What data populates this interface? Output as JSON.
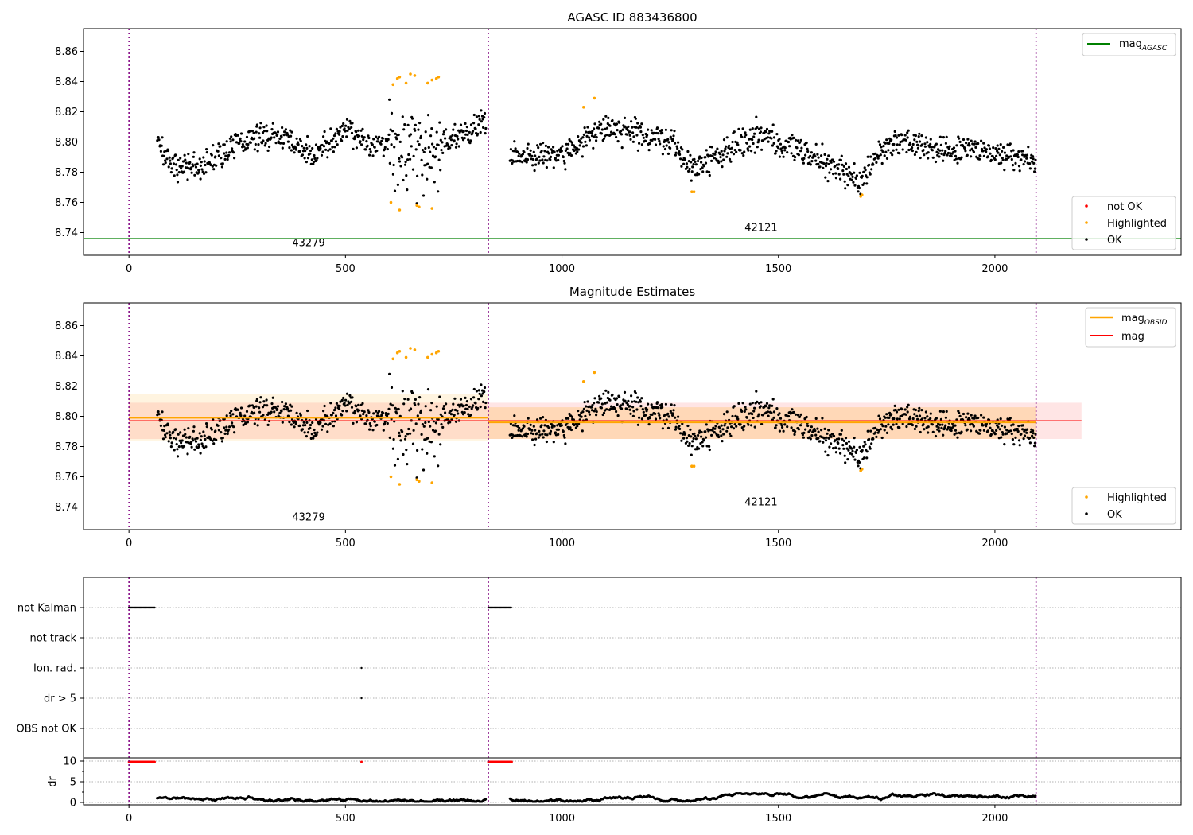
{
  "chart_data": [
    {
      "type": "scatter",
      "title": "AGASC ID 883436800",
      "xlim": [
        -105,
        2430
      ],
      "ylim": [
        8.725,
        8.875
      ],
      "xticks": [
        0,
        500,
        1000,
        1500,
        2000
      ],
      "yticks": [
        "8.74",
        "8.76",
        "8.78",
        "8.80",
        "8.82",
        "8.84",
        "8.86"
      ],
      "obs_boundaries": [
        0,
        830,
        2095
      ],
      "obs_labels": [
        {
          "text": "43279",
          "x": 415,
          "y": 8.731
        },
        {
          "text": "42121",
          "x": 1460,
          "y": 8.741
        }
      ],
      "lines": [
        {
          "name": "mag_AGASC",
          "label": "mag",
          "sub": "AGASC",
          "y": 8.736,
          "x": [
            -105,
            2430
          ],
          "color": "#008000"
        }
      ],
      "legend_top": "top-right",
      "legend_bottom": "bottom-right",
      "legend_series": [
        "not OK",
        "Highlighted",
        "OK"
      ],
      "series_ref": "ok_trend"
    },
    {
      "type": "scatter",
      "title": "Magnitude Estimates",
      "xlim": [
        -105,
        2430
      ],
      "ylim": [
        8.725,
        8.875
      ],
      "xticks": [
        0,
        500,
        1000,
        1500,
        2000
      ],
      "yticks": [
        "8.74",
        "8.76",
        "8.78",
        "8.80",
        "8.82",
        "8.84",
        "8.86"
      ],
      "obs_labels": [
        {
          "text": "43279",
          "x": 415,
          "y": 8.731
        },
        {
          "text": "42121",
          "x": 1460,
          "y": 8.741
        }
      ],
      "mag": {
        "label": "mag",
        "y": 8.797,
        "band": [
          8.785,
          8.809
        ],
        "x": [
          0,
          2200
        ],
        "color": "#ff0000"
      },
      "mag_obsid": {
        "label": "mag",
        "sub": "OBSID",
        "color": "#ffa500",
        "segments": [
          {
            "x": [
              0,
              830
            ],
            "y": 8.799,
            "band": [
              8.784,
              8.815
            ]
          },
          {
            "x": [
              830,
              2095
            ],
            "y": 8.796,
            "band": [
              8.785,
              8.806
            ]
          }
        ]
      },
      "legend_series": [
        "Highlighted",
        "OK"
      ]
    },
    {
      "type": "scatter",
      "flags": [
        "not Kalman",
        "not track",
        "Ion. rad.",
        "dr > 5",
        "OBS not OK"
      ],
      "flag_points": {
        "not Kalman": [
          [
            0,
            60
          ],
          [
            830,
            885
          ]
        ],
        "not track": [],
        "Ion. rad.": [
          [
            537,
            537
          ]
        ],
        "dr > 5": [
          [
            537,
            537
          ]
        ],
        "OBS not OK": []
      },
      "dr_ylabel": "dr",
      "dr_yticks": [
        "0",
        "5",
        "10"
      ],
      "dr_clipped_red": [
        [
          0,
          60
        ],
        [
          537,
          537
        ],
        [
          830,
          885
        ]
      ],
      "xticks": [
        0,
        500,
        1000,
        1500,
        2000
      ]
    }
  ],
  "ok_trend": {
    "x_ranges": [
      [
        65,
        825
      ],
      [
        880,
        2095
      ]
    ],
    "knots": [
      [
        65,
        8.805
      ],
      [
        90,
        8.785
      ],
      [
        150,
        8.782
      ],
      [
        200,
        8.79
      ],
      [
        260,
        8.8
      ],
      [
        350,
        8.805
      ],
      [
        420,
        8.79
      ],
      [
        500,
        8.81
      ],
      [
        560,
        8.798
      ],
      [
        600,
        8.8
      ],
      [
        660,
        8.795
      ],
      [
        720,
        8.8
      ],
      [
        760,
        8.802
      ],
      [
        820,
        8.812
      ],
      [
        880,
        8.792
      ],
      [
        1000,
        8.792
      ],
      [
        1050,
        8.8
      ],
      [
        1100,
        8.81
      ],
      [
        1200,
        8.805
      ],
      [
        1260,
        8.8
      ],
      [
        1300,
        8.78
      ],
      [
        1350,
        8.79
      ],
      [
        1450,
        8.805
      ],
      [
        1500,
        8.8
      ],
      [
        1550,
        8.795
      ],
      [
        1620,
        8.785
      ],
      [
        1690,
        8.774
      ],
      [
        1720,
        8.79
      ],
      [
        1780,
        8.802
      ],
      [
        1850,
        8.795
      ],
      [
        1950,
        8.795
      ],
      [
        2000,
        8.792
      ],
      [
        2095,
        8.787
      ]
    ],
    "noise": 0.0075,
    "wide_noise_range": [
      600,
      720
    ],
    "wide_noise": 0.022,
    "dr_range": [
      0.2,
      2.2
    ]
  },
  "highlighted": [
    [
      610,
      8.838
    ],
    [
      620,
      8.842
    ],
    [
      625,
      8.843
    ],
    [
      640,
      8.839
    ],
    [
      650,
      8.845
    ],
    [
      660,
      8.844
    ],
    [
      690,
      8.839
    ],
    [
      700,
      8.841
    ],
    [
      710,
      8.842
    ],
    [
      715,
      8.843
    ],
    [
      605,
      8.76
    ],
    [
      625,
      8.755
    ],
    [
      665,
      8.758
    ],
    [
      670,
      8.757
    ],
    [
      700,
      8.756
    ],
    [
      1050,
      8.823
    ],
    [
      1075,
      8.829
    ],
    [
      1300,
      8.767
    ],
    [
      1305,
      8.767
    ],
    [
      1690,
      8.764
    ],
    [
      1693,
      8.765
    ]
  ],
  "legend": {
    "not_ok": "not OK",
    "highlighted": "Highlighted",
    "ok": "OK",
    "mag": "mag",
    "agasc": "AGASC",
    "obsid": "OBSID"
  }
}
